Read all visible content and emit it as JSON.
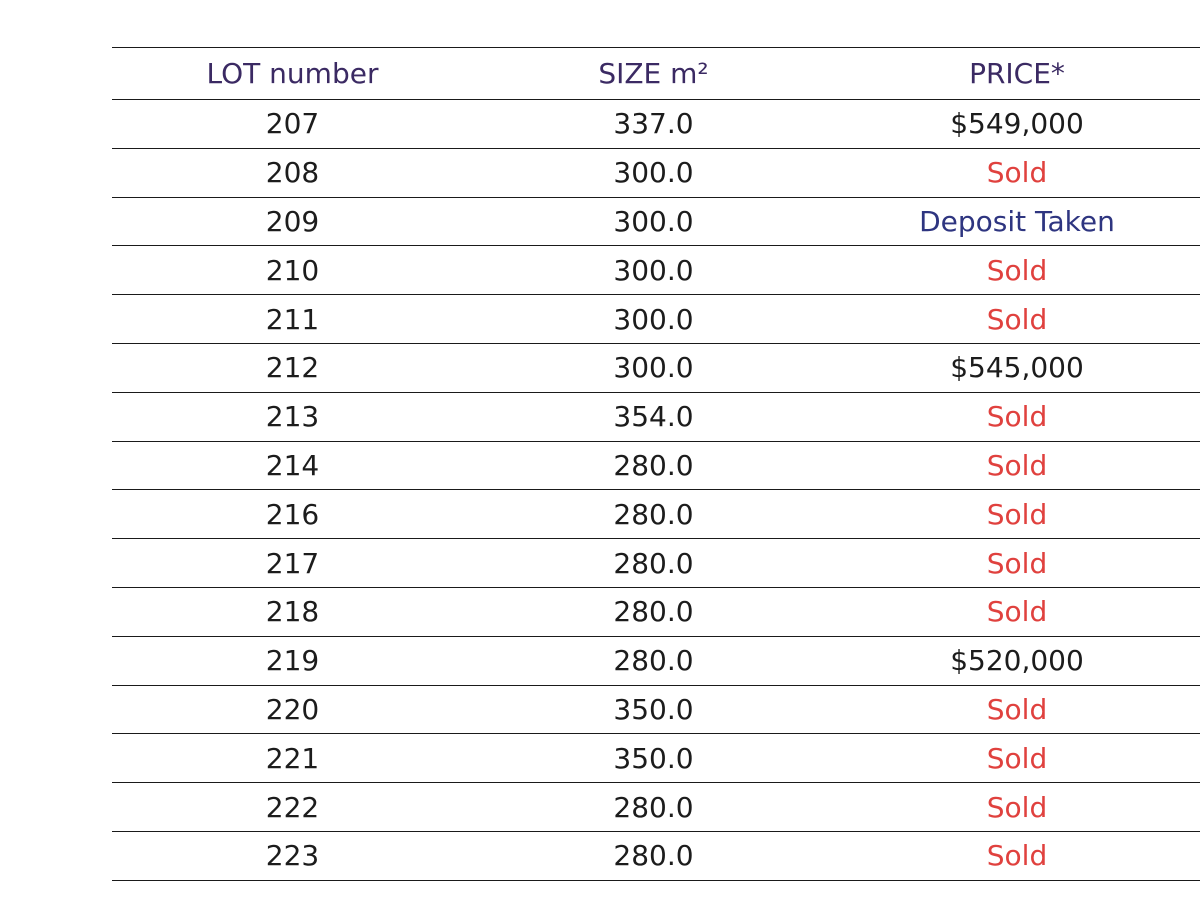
{
  "table": {
    "headers": {
      "lot": "LOT number",
      "size": "SIZE m²",
      "price": "PRICE*"
    },
    "rows": [
      {
        "lot": "207",
        "size": "337.0",
        "price": "$549,000",
        "status": "available"
      },
      {
        "lot": "208",
        "size": "300.0",
        "price": "Sold",
        "status": "sold"
      },
      {
        "lot": "209",
        "size": "300.0",
        "price": "Deposit Taken",
        "status": "deposit"
      },
      {
        "lot": "210",
        "size": "300.0",
        "price": "Sold",
        "status": "sold"
      },
      {
        "lot": "211",
        "size": "300.0",
        "price": "Sold",
        "status": "sold"
      },
      {
        "lot": "212",
        "size": "300.0",
        "price": "$545,000",
        "status": "available"
      },
      {
        "lot": "213",
        "size": "354.0",
        "price": "Sold",
        "status": "sold"
      },
      {
        "lot": "214",
        "size": "280.0",
        "price": "Sold",
        "status": "sold"
      },
      {
        "lot": "216",
        "size": "280.0",
        "price": "Sold",
        "status": "sold"
      },
      {
        "lot": "217",
        "size": "280.0",
        "price": "Sold",
        "status": "sold"
      },
      {
        "lot": "218",
        "size": "280.0",
        "price": "Sold",
        "status": "sold"
      },
      {
        "lot": "219",
        "size": "280.0",
        "price": "$520,000",
        "status": "available"
      },
      {
        "lot": "220",
        "size": "350.0",
        "price": "Sold",
        "status": "sold"
      },
      {
        "lot": "221",
        "size": "350.0",
        "price": "Sold",
        "status": "sold"
      },
      {
        "lot": "222",
        "size": "280.0",
        "price": "Sold",
        "status": "sold"
      },
      {
        "lot": "223",
        "size": "280.0",
        "price": "Sold",
        "status": "sold"
      }
    ]
  },
  "colors": {
    "header_text": "#3b2a63",
    "sold": "#e0413e",
    "deposit": "#2e3580",
    "available": "#1c1c1c",
    "rule": "#1a1a1a"
  }
}
